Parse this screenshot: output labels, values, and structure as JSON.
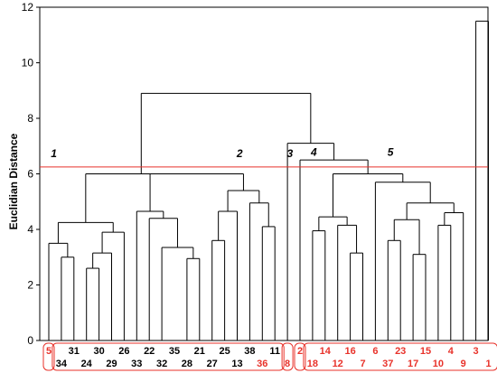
{
  "chart_data": {
    "type": "dendrogram",
    "ylabel": "Euclidian Distance",
    "ylim": [
      0,
      12
    ],
    "yticks": [
      0,
      2,
      4,
      6,
      8,
      10,
      12
    ],
    "cutoff_line": {
      "y": 6.25,
      "color": "#e8322a"
    },
    "leaf_order": [
      5,
      34,
      31,
      24,
      30,
      29,
      26,
      33,
      22,
      32,
      35,
      28,
      21,
      27,
      25,
      13,
      38,
      36,
      11,
      8,
      2,
      18,
      14,
      12,
      16,
      7,
      6,
      37,
      23,
      17,
      15,
      10,
      4,
      9,
      3,
      1
    ],
    "labels_top": [
      "5",
      "31",
      "30",
      "26",
      "22",
      "35",
      "21",
      "25",
      "38",
      "11",
      "2",
      "14",
      "16",
      "6",
      "23",
      "15",
      "4",
      "3"
    ],
    "labels_bottom": [
      "34",
      "24",
      "29",
      "33",
      "32",
      "28",
      "27",
      "13",
      "36",
      "8",
      "18",
      "12",
      "7",
      "37",
      "17",
      "10",
      "9",
      "1"
    ],
    "red_leaves": [
      "5",
      "36",
      "8",
      "2",
      "18",
      "14",
      "12",
      "16",
      "7",
      "6",
      "37",
      "23",
      "17",
      "15",
      "10",
      "4",
      "9",
      "3",
      "1"
    ],
    "merges": [
      {
        "left": 1,
        "right": 2,
        "height": 3.0
      },
      {
        "left": 0,
        "right": "m0",
        "height": 3.5
      },
      {
        "left": 3,
        "right": 4,
        "height": 2.6
      },
      {
        "left": "m2",
        "right": 5,
        "height": 3.15
      },
      {
        "left": "m3",
        "right": 6,
        "height": 3.9
      },
      {
        "left": "m1",
        "right": "m4",
        "height": 4.25
      },
      {
        "left": 11,
        "right": 12,
        "height": 2.95
      },
      {
        "left": 9,
        "right": "m6",
        "height": 3.35
      },
      {
        "left": 8,
        "right": "m7",
        "height": 4.4
      },
      {
        "left": 7,
        "right": "m8",
        "height": 4.65
      },
      {
        "left": 13,
        "right": 14,
        "height": 3.6
      },
      {
        "left": "m10",
        "right": 15,
        "height": 4.65
      },
      {
        "left": 17,
        "right": 18,
        "height": 4.1
      },
      {
        "left": 16,
        "right": "m12",
        "height": 4.95
      },
      {
        "left": "m11",
        "right": "m13",
        "height": 5.4
      },
      {
        "left": "m9",
        "right": "m14",
        "height": 6.0
      },
      {
        "left": "m5",
        "right": "m15",
        "height": 6.0
      },
      {
        "left": 21,
        "right": 22,
        "height": 3.95
      },
      {
        "left": 24,
        "right": 25,
        "height": 3.15
      },
      {
        "left": 23,
        "right": "m18",
        "height": 4.15
      },
      {
        "left": "m17",
        "right": "m19",
        "height": 4.45
      },
      {
        "left": 27,
        "right": 28,
        "height": 3.6
      },
      {
        "left": 29,
        "right": 30,
        "height": 3.1
      },
      {
        "left": "m21",
        "right": "m22",
        "height": 4.35
      },
      {
        "left": 31,
        "right": 32,
        "height": 4.15
      },
      {
        "left": "m24",
        "right": 33,
        "height": 4.6
      },
      {
        "left": "m23",
        "right": "m25",
        "height": 4.95
      },
      {
        "left": 26,
        "right": "m26",
        "height": 5.7
      },
      {
        "left": "m20",
        "right": "m27",
        "height": 6.0
      },
      {
        "left": 20,
        "right": "m28",
        "height": 6.5
      },
      {
        "left": 19,
        "right": "m29",
        "height": 7.1
      },
      {
        "left": "m16",
        "right": "m30",
        "height": 8.9
      },
      {
        "left": 34,
        "right": 35,
        "height": 11.5
      }
    ],
    "cluster_labels": [
      {
        "text": "1",
        "x_leaf": 0.4,
        "y": 6.6
      },
      {
        "text": "2",
        "x_leaf": 15.2,
        "y": 6.6
      },
      {
        "text": "3",
        "x_leaf": 19.2,
        "y": 6.6
      },
      {
        "text": "4",
        "x_leaf": 21.1,
        "y": 6.65
      },
      {
        "text": "5",
        "x_leaf": 27.2,
        "y": 6.65
      }
    ]
  }
}
